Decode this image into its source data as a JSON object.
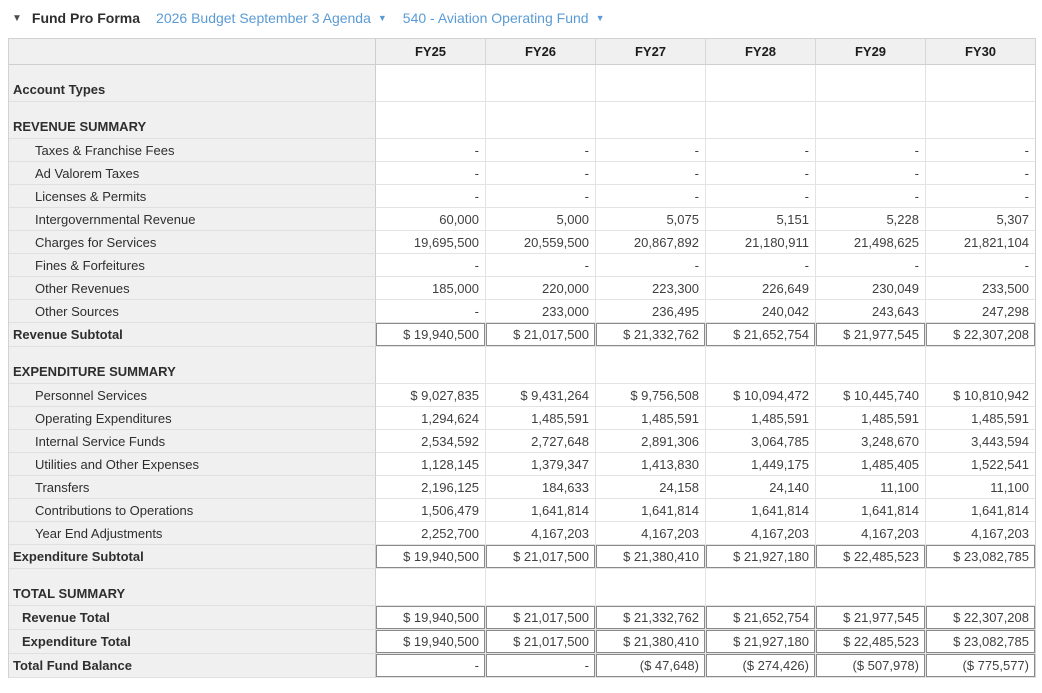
{
  "header": {
    "collapse_icon": "▼",
    "title": "Fund Pro Forma",
    "budget_dropdown": {
      "label": "2026 Budget September 3 Agenda",
      "caret": "▼"
    },
    "fund_dropdown": {
      "label": "540 - Aviation Operating Fund",
      "caret": "▼"
    }
  },
  "colors": {
    "link_blue": "#5b9bd5",
    "label_column_bg": "#f0f0f0",
    "total_box_border": "#8a8a8a"
  },
  "table": {
    "columns": [
      "FY25",
      "FY26",
      "FY27",
      "FY28",
      "FY29",
      "FY30"
    ],
    "rows": [
      {
        "label": "Account Types",
        "type": "section",
        "values": [
          "",
          "",
          "",
          "",
          "",
          ""
        ]
      },
      {
        "label": "REVENUE SUMMARY",
        "type": "section",
        "values": [
          "",
          "",
          "",
          "",
          "",
          ""
        ]
      },
      {
        "label": "Taxes & Franchise Fees",
        "type": "detail",
        "values": [
          "-",
          "-",
          "-",
          "-",
          "-",
          "-"
        ]
      },
      {
        "label": "Ad Valorem Taxes",
        "type": "detail",
        "values": [
          "-",
          "-",
          "-",
          "-",
          "-",
          "-"
        ]
      },
      {
        "label": "Licenses & Permits",
        "type": "detail",
        "values": [
          "-",
          "-",
          "-",
          "-",
          "-",
          "-"
        ]
      },
      {
        "label": "Intergovernmental Revenue",
        "type": "detail",
        "values": [
          "60,000",
          "5,000",
          "5,075",
          "5,151",
          "5,228",
          "5,307"
        ]
      },
      {
        "label": "Charges for Services",
        "type": "detail",
        "values": [
          "19,695,500",
          "20,559,500",
          "20,867,892",
          "21,180,911",
          "21,498,625",
          "21,821,104"
        ]
      },
      {
        "label": "Fines & Forfeitures",
        "type": "detail",
        "values": [
          "-",
          "-",
          "-",
          "-",
          "-",
          "-"
        ]
      },
      {
        "label": "Other Revenues",
        "type": "detail",
        "values": [
          "185,000",
          "220,000",
          "223,300",
          "226,649",
          "230,049",
          "233,500"
        ]
      },
      {
        "label": "Other Sources",
        "type": "detail",
        "values": [
          "-",
          "233,000",
          "236,495",
          "240,042",
          "243,643",
          "247,298"
        ]
      },
      {
        "label": "Revenue Subtotal",
        "type": "subtotal",
        "values": [
          "$ 19,940,500",
          "$ 21,017,500",
          "$ 21,332,762",
          "$ 21,652,754",
          "$ 21,977,545",
          "$ 22,307,208"
        ]
      },
      {
        "label": "EXPENDITURE SUMMARY",
        "type": "section",
        "values": [
          "",
          "",
          "",
          "",
          "",
          ""
        ]
      },
      {
        "label": "Personnel Services",
        "type": "detail",
        "values": [
          "$ 9,027,835",
          "$ 9,431,264",
          "$ 9,756,508",
          "$ 10,094,472",
          "$ 10,445,740",
          "$ 10,810,942"
        ]
      },
      {
        "label": "Operating Expenditures",
        "type": "detail",
        "values": [
          "1,294,624",
          "1,485,591",
          "1,485,591",
          "1,485,591",
          "1,485,591",
          "1,485,591"
        ]
      },
      {
        "label": "Internal Service Funds",
        "type": "detail",
        "values": [
          "2,534,592",
          "2,727,648",
          "2,891,306",
          "3,064,785",
          "3,248,670",
          "3,443,594"
        ]
      },
      {
        "label": "Utilities and Other Expenses",
        "type": "detail",
        "values": [
          "1,128,145",
          "1,379,347",
          "1,413,830",
          "1,449,175",
          "1,485,405",
          "1,522,541"
        ]
      },
      {
        "label": "Transfers",
        "type": "detail",
        "values": [
          "2,196,125",
          "184,633",
          "24,158",
          "24,140",
          "11,100",
          "11,100"
        ]
      },
      {
        "label": "Contributions to Operations",
        "type": "detail",
        "values": [
          "1,506,479",
          "1,641,814",
          "1,641,814",
          "1,641,814",
          "1,641,814",
          "1,641,814"
        ]
      },
      {
        "label": "Year End Adjustments",
        "type": "detail",
        "values": [
          "2,252,700",
          "4,167,203",
          "4,167,203",
          "4,167,203",
          "4,167,203",
          "4,167,203"
        ]
      },
      {
        "label": "Expenditure Subtotal",
        "type": "subtotal",
        "values": [
          "$ 19,940,500",
          "$ 21,017,500",
          "$ 21,380,410",
          "$ 21,927,180",
          "$ 22,485,523",
          "$ 23,082,785"
        ]
      },
      {
        "label": "TOTAL SUMMARY",
        "type": "section",
        "values": [
          "",
          "",
          "",
          "",
          "",
          ""
        ]
      },
      {
        "label": "Revenue Total",
        "type": "total",
        "values": [
          "$ 19,940,500",
          "$ 21,017,500",
          "$ 21,332,762",
          "$ 21,652,754",
          "$ 21,977,545",
          "$ 22,307,208"
        ]
      },
      {
        "label": "Expenditure Total",
        "type": "total",
        "values": [
          "$ 19,940,500",
          "$ 21,017,500",
          "$ 21,380,410",
          "$ 21,927,180",
          "$ 22,485,523",
          "$ 23,082,785"
        ]
      },
      {
        "label": "Total Fund Balance",
        "type": "grand",
        "values": [
          "-",
          "-",
          "($ 47,648)",
          "($ 274,426)",
          "($ 507,978)",
          "($ 775,577)"
        ]
      }
    ]
  }
}
